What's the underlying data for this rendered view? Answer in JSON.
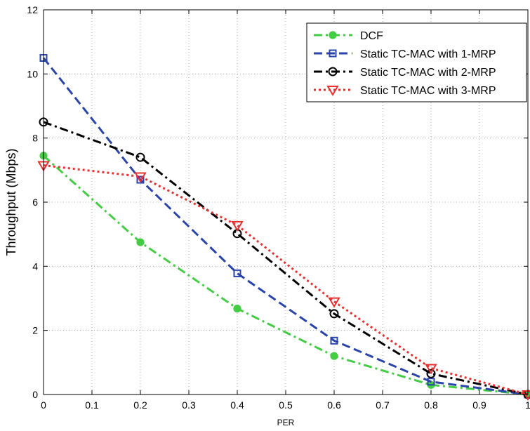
{
  "chart_data": {
    "type": "line",
    "xlabel": "PER",
    "ylabel": "Throughput (Mbps)",
    "xlim": [
      0,
      1
    ],
    "ylim": [
      0,
      12
    ],
    "xticks": [
      "0",
      "0.1",
      "0.2",
      "0.3",
      "0.4",
      "0.5",
      "0.6",
      "0.7",
      "0.8",
      "0.9",
      "1"
    ],
    "yticks": [
      "0",
      "2",
      "4",
      "6",
      "8",
      "10",
      "12"
    ],
    "grid": true,
    "legend_position": "top-right",
    "x": [
      0,
      0.2,
      0.4,
      0.6,
      0.8,
      1.0
    ],
    "series": [
      {
        "name": "DCF",
        "values": [
          7.45,
          4.75,
          2.68,
          1.2,
          0.3,
          0.0
        ],
        "color": "#44cc44",
        "dash": "dash-dot",
        "marker": "circle-filled"
      },
      {
        "name": "Static TC-MAC with 1-MRP",
        "values": [
          10.5,
          6.7,
          3.78,
          1.68,
          0.4,
          0.0
        ],
        "color": "#2a44aa",
        "dash": "dashed",
        "marker": "square"
      },
      {
        "name": "Static TC-MAC with 2-MRP",
        "values": [
          8.5,
          7.4,
          5.02,
          2.52,
          0.65,
          0.0
        ],
        "color": "#000000",
        "dash": "dash-dot",
        "marker": "circle"
      },
      {
        "name": "Static TC-MAC with 3-MRP",
        "values": [
          7.15,
          6.8,
          5.28,
          2.9,
          0.82,
          0.0
        ],
        "color": "#e83030",
        "dash": "dotted",
        "marker": "triangle-down"
      }
    ]
  }
}
